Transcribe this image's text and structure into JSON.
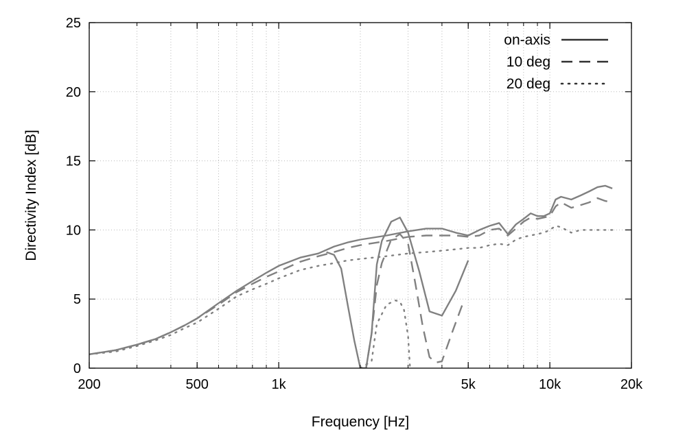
{
  "chart_data": {
    "type": "line",
    "title": "",
    "xlabel": "Frequency [Hz]",
    "ylabel": "Directivity Index [dB]",
    "xscale": "log",
    "xlim": [
      200,
      20000
    ],
    "ylim": [
      0,
      25
    ],
    "grid": true,
    "legend_position": "top-right",
    "x_ticks": [
      {
        "value": 200,
        "label": "200"
      },
      {
        "value": 500,
        "label": "500"
      },
      {
        "value": 1000,
        "label": "1k"
      },
      {
        "value": 5000,
        "label": "5k"
      },
      {
        "value": 10000,
        "label": "10k"
      },
      {
        "value": 20000,
        "label": "20k"
      }
    ],
    "y_ticks": [
      {
        "value": 0,
        "label": "0"
      },
      {
        "value": 5,
        "label": "5"
      },
      {
        "value": 10,
        "label": "10"
      },
      {
        "value": 15,
        "label": "15"
      },
      {
        "value": 20,
        "label": "20"
      },
      {
        "value": 25,
        "label": "25"
      }
    ],
    "series": [
      {
        "name": "on-axis",
        "style": "solid",
        "color": "#808080",
        "legend_color": "#303030",
        "points": [
          [
            200,
            1.0
          ],
          [
            250,
            1.3
          ],
          [
            300,
            1.7
          ],
          [
            350,
            2.1
          ],
          [
            400,
            2.6
          ],
          [
            450,
            3.1
          ],
          [
            500,
            3.6
          ],
          [
            600,
            4.7
          ],
          [
            700,
            5.6
          ],
          [
            800,
            6.3
          ],
          [
            900,
            6.9
          ],
          [
            1000,
            7.4
          ],
          [
            1200,
            8.0
          ],
          [
            1400,
            8.3
          ],
          [
            1600,
            8.8
          ],
          [
            1800,
            9.1
          ],
          [
            2000,
            9.3
          ],
          [
            2500,
            9.6
          ],
          [
            3000,
            9.9
          ],
          [
            3500,
            10.1
          ],
          [
            4000,
            10.1
          ],
          [
            4500,
            9.8
          ],
          [
            5000,
            9.6
          ],
          [
            5500,
            10.0
          ],
          [
            6000,
            10.3
          ],
          [
            6500,
            10.5
          ],
          [
            7000,
            9.7
          ],
          [
            7500,
            10.4
          ],
          [
            8000,
            10.8
          ],
          [
            8500,
            11.2
          ],
          [
            9000,
            11.0
          ],
          [
            9500,
            11.0
          ],
          [
            10000,
            11.2
          ],
          [
            10500,
            12.2
          ],
          [
            11000,
            12.4
          ],
          [
            12000,
            12.2
          ],
          [
            13000,
            12.5
          ],
          [
            14000,
            12.8
          ],
          [
            15000,
            13.1
          ],
          [
            16000,
            13.2
          ],
          [
            17000,
            13.0
          ]
        ]
      },
      {
        "name": "10 deg",
        "style": "dashed",
        "color": "#808080",
        "legend_color": "#303030",
        "points": [
          [
            200,
            1.0
          ],
          [
            250,
            1.3
          ],
          [
            300,
            1.7
          ],
          [
            350,
            2.1
          ],
          [
            400,
            2.6
          ],
          [
            450,
            3.1
          ],
          [
            500,
            3.6
          ],
          [
            600,
            4.6
          ],
          [
            700,
            5.5
          ],
          [
            800,
            6.1
          ],
          [
            900,
            6.6
          ],
          [
            1000,
            7.0
          ],
          [
            1200,
            7.7
          ],
          [
            1400,
            8.1
          ],
          [
            1600,
            8.4
          ],
          [
            1800,
            8.7
          ],
          [
            2000,
            8.9
          ],
          [
            2500,
            9.2
          ],
          [
            3000,
            9.5
          ],
          [
            3500,
            9.6
          ],
          [
            4000,
            9.6
          ],
          [
            4500,
            9.6
          ],
          [
            5000,
            9.5
          ],
          [
            5500,
            9.6
          ],
          [
            6000,
            10.0
          ],
          [
            6500,
            10.1
          ],
          [
            7000,
            9.6
          ],
          [
            7500,
            10.1
          ],
          [
            8000,
            10.6
          ],
          [
            8500,
            10.9
          ],
          [
            9000,
            10.8
          ],
          [
            9500,
            10.9
          ],
          [
            10000,
            11.0
          ],
          [
            10500,
            11.7
          ],
          [
            11000,
            12.0
          ],
          [
            12000,
            11.6
          ],
          [
            13000,
            11.8
          ],
          [
            14000,
            12.0
          ],
          [
            15000,
            12.3
          ],
          [
            16000,
            12.1
          ],
          [
            17000,
            12.0
          ]
        ]
      },
      {
        "name": "20 deg",
        "style": "dotted",
        "color": "#808080",
        "legend_color": "#303030",
        "points": [
          [
            200,
            1.0
          ],
          [
            250,
            1.2
          ],
          [
            300,
            1.6
          ],
          [
            350,
            2.0
          ],
          [
            400,
            2.4
          ],
          [
            450,
            2.9
          ],
          [
            500,
            3.3
          ],
          [
            600,
            4.3
          ],
          [
            700,
            5.2
          ],
          [
            800,
            5.7
          ],
          [
            900,
            6.1
          ],
          [
            1000,
            6.5
          ],
          [
            1200,
            7.1
          ],
          [
            1400,
            7.4
          ],
          [
            1600,
            7.6
          ],
          [
            1800,
            7.8
          ],
          [
            2000,
            7.9
          ],
          [
            2500,
            8.1
          ],
          [
            3000,
            8.3
          ],
          [
            3500,
            8.4
          ],
          [
            4000,
            8.5
          ],
          [
            4500,
            8.6
          ],
          [
            5000,
            8.7
          ],
          [
            5500,
            8.7
          ],
          [
            6000,
            8.9
          ],
          [
            6500,
            9.0
          ],
          [
            7000,
            8.9
          ],
          [
            7500,
            9.3
          ],
          [
            8000,
            9.5
          ],
          [
            8500,
            9.6
          ],
          [
            9000,
            9.7
          ],
          [
            9500,
            9.8
          ],
          [
            10000,
            10.0
          ],
          [
            10500,
            10.3
          ],
          [
            11000,
            10.2
          ],
          [
            12000,
            9.8
          ],
          [
            13000,
            10.0
          ],
          [
            14000,
            10.0
          ],
          [
            15000,
            10.0
          ],
          [
            16000,
            10.0
          ],
          [
            17000,
            10.0
          ]
        ]
      },
      {
        "name": "",
        "style": "solid",
        "color": "#808080",
        "points": [
          [
            1500,
            8.4
          ],
          [
            1600,
            8.2
          ],
          [
            1700,
            7.2
          ],
          [
            1800,
            4.5
          ],
          [
            1900,
            2.0
          ],
          [
            2000,
            0.0
          ]
        ]
      },
      {
        "name": "",
        "style": "solid",
        "color": "#808080",
        "points": [
          [
            2100,
            0.0
          ],
          [
            2200,
            2.5
          ],
          [
            2300,
            7.5
          ],
          [
            2400,
            9.2
          ],
          [
            2600,
            10.6
          ],
          [
            2800,
            10.9
          ],
          [
            3000,
            9.8
          ],
          [
            3300,
            7.0
          ],
          [
            3600,
            4.1
          ],
          [
            4000,
            3.8
          ],
          [
            4500,
            5.6
          ],
          [
            5000,
            7.8
          ]
        ]
      },
      {
        "name": "",
        "style": "dashed",
        "color": "#808080",
        "points": [
          [
            2000,
            0.0
          ],
          [
            2100,
            0.0
          ],
          [
            2200,
            2.5
          ],
          [
            2300,
            6.0
          ],
          [
            2400,
            7.6
          ],
          [
            2600,
            9.3
          ],
          [
            2800,
            9.7
          ],
          [
            3000,
            9.0
          ],
          [
            3200,
            6.0
          ],
          [
            3400,
            3.0
          ],
          [
            3600,
            0.8
          ],
          [
            3800,
            0.4
          ],
          [
            4000,
            0.5
          ],
          [
            4400,
            2.8
          ],
          [
            4800,
            4.8
          ]
        ]
      },
      {
        "name": "",
        "style": "dotted",
        "color": "#808080",
        "points": [
          [
            2000,
            0.0
          ],
          [
            2200,
            0.5
          ],
          [
            2300,
            3.2
          ],
          [
            2500,
            4.6
          ],
          [
            2700,
            4.9
          ],
          [
            2800,
            4.8
          ],
          [
            2900,
            4.2
          ],
          [
            3000,
            2.3
          ],
          [
            3050,
            0.0
          ]
        ]
      }
    ]
  }
}
